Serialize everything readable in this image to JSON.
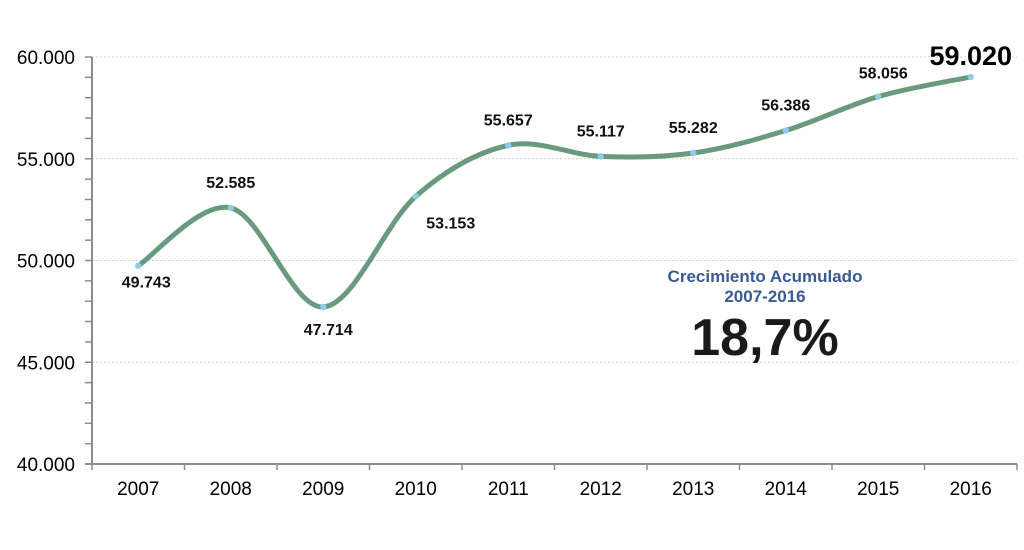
{
  "chart_data": {
    "type": "line",
    "title": "",
    "xlabel": "",
    "ylabel": "",
    "categories": [
      "2007",
      "2008",
      "2009",
      "2010",
      "2011",
      "2012",
      "2013",
      "2014",
      "2015",
      "2016"
    ],
    "series": [
      {
        "name": "",
        "values": [
          49743,
          52585,
          47714,
          53153,
          55657,
          55117,
          55282,
          56386,
          58056,
          59020
        ],
        "labels": [
          "49.743",
          "52.585",
          "47.714",
          "53.153",
          "55.657",
          "55.117",
          "55.282",
          "56.386",
          "58.056",
          "59.020"
        ],
        "color": "#6a9a7e",
        "marker_color": "#8fcbea",
        "smooth": true
      }
    ],
    "ylim": [
      40000,
      60000
    ],
    "yticks": [
      40000,
      45000,
      50000,
      55000,
      60000
    ],
    "ytick_labels": [
      "40.000",
      "45.000",
      "50.000",
      "55.000",
      "60.000"
    ],
    "grid": true,
    "legend": "none",
    "annotation": {
      "title_line1": "Crecimiento Acumulado",
      "title_line2": "2007-2016",
      "value": "18,7%",
      "title_color": "#3a5a93"
    }
  }
}
